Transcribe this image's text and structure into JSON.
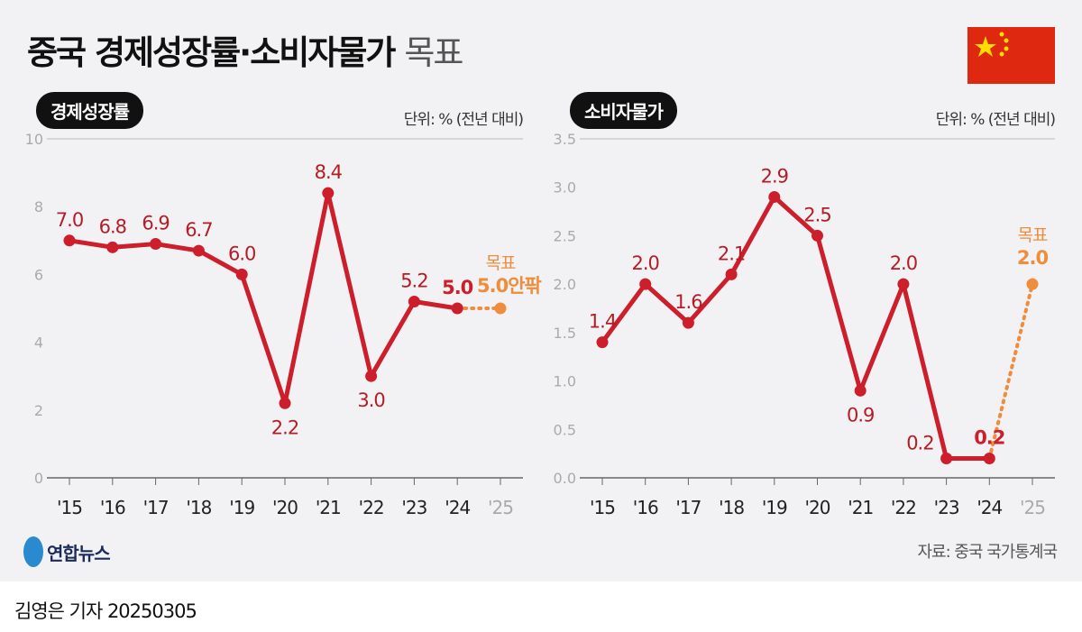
{
  "title": {
    "main": "중국 경제성장률·소비자물가",
    "sub": "목표"
  },
  "colors": {
    "actual": "#cc1f2b",
    "target": "#ef8d3d",
    "flag": "#de2910"
  },
  "footer": {
    "logo": "연합뉴스",
    "source": "자료: 중국 국가통계국",
    "byline": "김영은 기자 20250305"
  },
  "chart_data": [
    {
      "type": "line",
      "title": "경제성장률",
      "unit": "단위: % (전년 대비)",
      "categories": [
        "'15",
        "'16",
        "'17",
        "'18",
        "'19",
        "'20",
        "'21",
        "'22",
        "'23",
        "'24",
        "'25"
      ],
      "values": [
        7.0,
        6.8,
        6.9,
        6.7,
        6.0,
        2.2,
        8.4,
        3.0,
        5.2,
        5.0,
        null
      ],
      "labels": [
        "7.0",
        "6.8",
        "6.9",
        "6.7",
        "6.0",
        "2.2",
        "8.4",
        "3.0",
        "5.2",
        "5.0",
        ""
      ],
      "target": {
        "category": "'25",
        "value": 5.0,
        "label": "목표",
        "value_label": "5.0안팎"
      },
      "ylim": [
        0,
        10
      ],
      "yticks": [
        "0",
        "2",
        "4",
        "6",
        "8",
        "10"
      ],
      "grid": false
    },
    {
      "type": "line",
      "title": "소비자물가",
      "unit": "단위: % (전년 대비)",
      "categories": [
        "'15",
        "'16",
        "'17",
        "'18",
        "'19",
        "'20",
        "'21",
        "'22",
        "'23",
        "'24",
        "'25"
      ],
      "values": [
        1.4,
        2.0,
        1.6,
        2.1,
        2.9,
        2.5,
        0.9,
        2.0,
        0.2,
        0.2,
        null
      ],
      "labels": [
        "1.4",
        "2.0",
        "1.6",
        "2.1",
        "2.9",
        "2.5",
        "0.9",
        "2.0",
        "0.2",
        "0.2",
        ""
      ],
      "target": {
        "category": "'25",
        "value": 2.0,
        "label": "목표",
        "value_label": "2.0"
      },
      "ylim": [
        0,
        3.5
      ],
      "yticks": [
        "0.0",
        "0.5",
        "1.0",
        "1.5",
        "2.0",
        "2.5",
        "3.0",
        "3.5"
      ],
      "grid": false
    }
  ]
}
